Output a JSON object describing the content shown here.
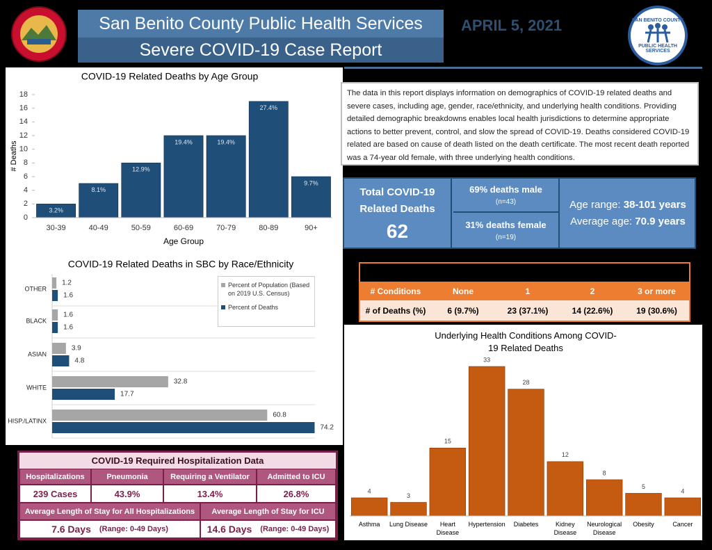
{
  "header": {
    "title": "San Benito County Public Health Services",
    "subtitle": "Severe COVID-19 Case Report",
    "date": "APRIL 5, 2021",
    "logo_text": [
      "SAN BENITO COUNTY",
      "PUBLIC HEALTH SERVICES"
    ]
  },
  "description": "The data in this report displays information on demographics of COVID-19 related deaths and severe cases, including age, gender, race/ethnicity, and underlying health conditions.  Providing detailed demographic breakdowns enables local health jurisdictions to determine appropriate actions to better prevent, control, and slow the spread of COVID-19.  Deaths considered COVID-19 related are based on cause of death listed on the death certificate.  The most recent death reported was a 74-year old female, with three underlying health conditions.",
  "summary": {
    "total_label": "Total COVID-19 Related Deaths",
    "total": "62",
    "male": "69% deaths male",
    "male_n": "(n=43)",
    "female": "31% deaths female",
    "female_n": "(n=19)",
    "age_range_label": "Age range:",
    "age_range": "38-101 years",
    "average_age_label": "Average age:",
    "average_age": "70.9 years"
  },
  "conditions_table": {
    "header": [
      "# Conditions",
      "None",
      "1",
      "2",
      "3 or more"
    ],
    "rows": [
      [
        "# of Deaths (%)",
        "6  (9.7%)",
        "23  (37.1%)",
        "14  (22.6%)",
        "19  (30.6%)"
      ]
    ]
  },
  "hospitalization": {
    "title": "COVID-19 Required Hospitalization Data",
    "header": [
      "Hospitalizations",
      "Pneumonia",
      "Requiring a Ventilator",
      "Admitted to ICU"
    ],
    "values": [
      "239 Cases",
      "43.9%",
      "13.4%",
      "26.8%"
    ],
    "stay_header": [
      "Average Length of Stay for All Hospitalizations",
      "Average Length of Stay for ICU"
    ],
    "stay_values": [
      [
        "7.6 Days",
        "(Range: 0-49 Days)"
      ],
      [
        "14.6 Days",
        "(Range: 0-49 Days)"
      ]
    ]
  },
  "chart_data": [
    {
      "type": "bar",
      "title": "COVID-19 Related Deaths by Age Group",
      "x_label": "Age Group",
      "y_label": "# Deaths",
      "categories": [
        "30-39",
        "40-49",
        "50-59",
        "60-69",
        "70-79",
        "80-89",
        "90+"
      ],
      "values": [
        2,
        5,
        8,
        12,
        12,
        17,
        6
      ],
      "value_labels": [
        "3.2%",
        "8.1%",
        "12.9%",
        "19.4%",
        "19.4%",
        "27.4%",
        "9.7%"
      ],
      "color": "#1f4e79",
      "ylim": [
        0,
        18
      ],
      "yticks": [
        0,
        2,
        4,
        6,
        8,
        10,
        12,
        14,
        16,
        18
      ]
    },
    {
      "type": "hbar",
      "title": "COVID-19 Related Deaths in SBC by Race/Ethnicity",
      "categories": [
        "OTHER",
        "BLACK",
        "ASIAN",
        "WHITE",
        "HISP./LATINX"
      ],
      "series": [
        {
          "name": "Percent of Population (Based on 2019 U.S. Census)",
          "color": "#a6a6a6",
          "values": [
            1.2,
            1.6,
            3.9,
            32.8,
            60.8
          ]
        },
        {
          "name": "Percent of Deaths",
          "color": "#1f4e79",
          "values": [
            1.6,
            1.6,
            4.8,
            17.7,
            74.2
          ]
        }
      ],
      "xlim": [
        0,
        80
      ],
      "legend": "upper right"
    },
    {
      "type": "bar",
      "title": "Underlying Health Conditions Among COVID-19 Related Deaths",
      "categories": [
        "Asthma",
        "Lung Disease",
        "Heart Disease",
        "Hypertension",
        "Diabetes",
        "Kidney Disease",
        "Neurological Disease",
        "Obesity",
        "Cancer"
      ],
      "values": [
        4,
        3,
        15,
        33,
        28,
        12,
        8,
        5,
        4
      ],
      "color": "#c55a11",
      "ylim": [
        0,
        35
      ]
    }
  ]
}
